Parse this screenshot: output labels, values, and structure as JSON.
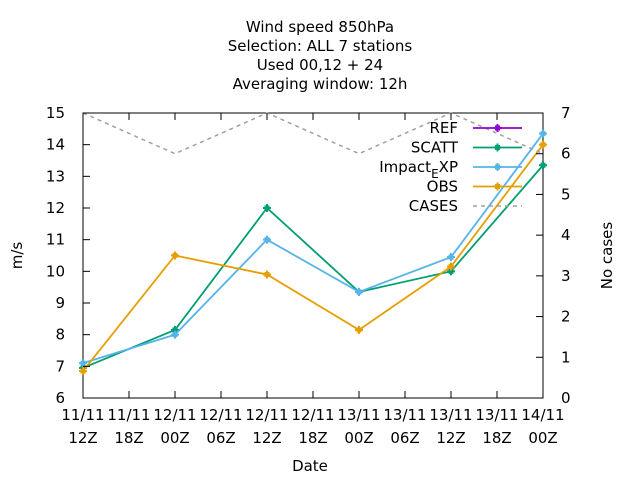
{
  "chart_data": {
    "type": "line",
    "title_lines": [
      "Wind speed 850hPa",
      "Selection: ALL      7 stations",
      "Used  00,12  + 24",
      "Averaging window: 12h"
    ],
    "xlabel": "Date",
    "ylabel": "m/s",
    "y2label": "No cases",
    "ylim": [
      6,
      15
    ],
    "y2lim": [
      0,
      7
    ],
    "yticks": [
      "6",
      "7",
      "8",
      "9",
      "10",
      "11",
      "12",
      "13",
      "14",
      "15"
    ],
    "y2ticks": [
      "0",
      "1",
      "2",
      "3",
      "4",
      "5",
      "6",
      "7"
    ],
    "x": [
      "11/11 12Z",
      "11/11 18Z",
      "12/11 00Z",
      "12/11 06Z",
      "12/11 12Z",
      "12/11 18Z",
      "13/11 00Z",
      "13/11 06Z",
      "13/11 12Z",
      "13/11 18Z",
      "14/11 00Z"
    ],
    "xticks": [
      {
        "top": "11/11",
        "bottom": "12Z"
      },
      {
        "top": "11/11",
        "bottom": "18Z"
      },
      {
        "top": "12/11",
        "bottom": "00Z"
      },
      {
        "top": "12/11",
        "bottom": "06Z"
      },
      {
        "top": "12/11",
        "bottom": "12Z"
      },
      {
        "top": "12/11",
        "bottom": "18Z"
      },
      {
        "top": "13/11",
        "bottom": "00Z"
      },
      {
        "top": "13/11",
        "bottom": "06Z"
      },
      {
        "top": "13/11",
        "bottom": "12Z"
      },
      {
        "top": "13/11",
        "bottom": "18Z"
      },
      {
        "top": "14/11",
        "bottom": "00Z"
      }
    ],
    "legend_position": "top-right",
    "grid": false,
    "series": [
      {
        "name": "REF",
        "color": "#9400d3",
        "axis": "y",
        "dashed": false,
        "points": []
      },
      {
        "name": "SCATT",
        "color": "#009e73",
        "axis": "y",
        "dashed": false,
        "points": [
          [
            "11/11 12Z",
            6.95
          ],
          [
            "12/11 00Z",
            8.15
          ],
          [
            "12/11 12Z",
            12.0
          ],
          [
            "13/11 00Z",
            9.35
          ],
          [
            "13/11 12Z",
            10.0
          ],
          [
            "14/11 00Z",
            13.35
          ]
        ]
      },
      {
        "name": "Impact_EXP",
        "legend_main": "Impact",
        "legend_sub": "E",
        "legend_tail": "XP",
        "color": "#56b4e9",
        "axis": "y",
        "dashed": false,
        "points": [
          [
            "11/11 12Z",
            7.1
          ],
          [
            "12/11 00Z",
            8.0
          ],
          [
            "12/11 12Z",
            11.0
          ],
          [
            "13/11 00Z",
            9.35
          ],
          [
            "13/11 12Z",
            10.45
          ],
          [
            "14/11 00Z",
            14.35
          ]
        ]
      },
      {
        "name": "OBS",
        "color": "#e69f00",
        "axis": "y",
        "dashed": false,
        "points": [
          [
            "11/11 12Z",
            6.85
          ],
          [
            "12/11 00Z",
            10.5
          ],
          [
            "12/11 12Z",
            9.9
          ],
          [
            "13/11 00Z",
            8.15
          ],
          [
            "13/11 12Z",
            10.15
          ],
          [
            "14/11 00Z",
            14.0
          ]
        ]
      },
      {
        "name": "CASES",
        "color": "#a0a0a0",
        "axis": "y2",
        "dashed": true,
        "points": [
          [
            "11/11 12Z",
            7
          ],
          [
            "12/11 00Z",
            6
          ],
          [
            "12/11 12Z",
            7
          ],
          [
            "13/11 00Z",
            6
          ],
          [
            "13/11 12Z",
            7
          ],
          [
            "14/11 00Z",
            6
          ]
        ]
      }
    ]
  }
}
